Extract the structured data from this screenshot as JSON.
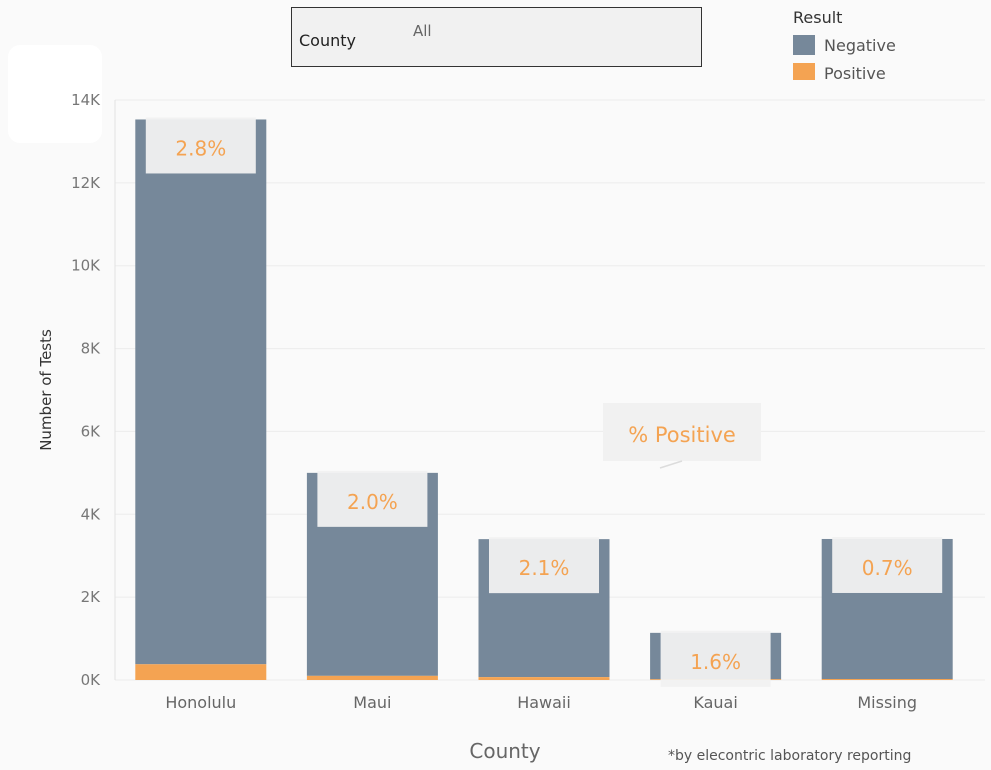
{
  "filter": {
    "label": "County",
    "value": "All"
  },
  "legend": {
    "title": "Result",
    "items": [
      {
        "label": "Negative",
        "color": "#76889a"
      },
      {
        "label": "Positive",
        "color": "#f4a352"
      }
    ]
  },
  "annotation_label": "% Positive",
  "footnote": "*by elecontric laboratory reporting",
  "colors": {
    "negative": "#76889a",
    "positive": "#f4a352",
    "grid": "#ececec",
    "label_text": "#f4a352"
  },
  "chart_data": {
    "type": "bar",
    "stacked": true,
    "categories": [
      "Honolulu",
      "Maui",
      "Hawaii",
      "Kauai",
      "Missing"
    ],
    "series": [
      {
        "name": "Negative",
        "values": [
          13150,
          4900,
          3330,
          1120,
          3380
        ]
      },
      {
        "name": "Positive",
        "values": [
          380,
          100,
          70,
          18,
          24
        ]
      }
    ],
    "percent_positive": [
      "2.8%",
      "2.0%",
      "2.1%",
      "1.6%",
      "0.7%"
    ],
    "xlabel": "County",
    "ylabel": "Number of Tests",
    "ylim": [
      0,
      14000
    ],
    "yticks": [
      0,
      2000,
      4000,
      6000,
      8000,
      10000,
      12000,
      14000
    ],
    "ytick_labels": [
      "0K",
      "2K",
      "4K",
      "6K",
      "8K",
      "10K",
      "12K",
      "14K"
    ],
    "grid": true,
    "legend_position": "top-right"
  }
}
